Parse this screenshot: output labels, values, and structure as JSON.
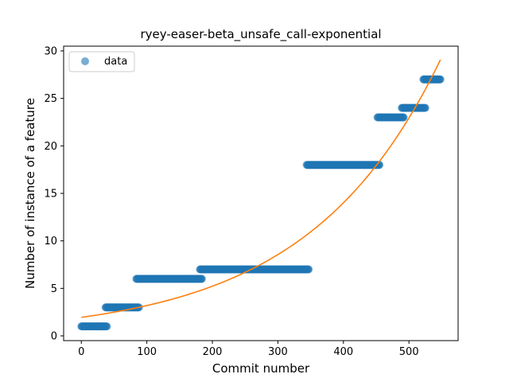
{
  "chart_data": {
    "type": "scatter",
    "title": "ryey-easer-beta_unsafe_call-exponential",
    "xlabel": "Commit number",
    "ylabel": "Number of instance of a feature",
    "xlim": [
      -27,
      575
    ],
    "ylim": [
      -0.5,
      30.5
    ],
    "xticks": [
      0,
      100,
      200,
      300,
      400,
      500
    ],
    "yticks": [
      0,
      5,
      10,
      15,
      20,
      25,
      30
    ],
    "grid": false,
    "legend": {
      "placement": "top-left",
      "entries": [
        "data"
      ]
    },
    "colors": {
      "data": "#1f77b4",
      "fit": "#ff7f0e"
    },
    "series": [
      {
        "name": "data",
        "kind": "scatter",
        "segments": [
          {
            "x_start": 0,
            "x_end": 39,
            "y": 1
          },
          {
            "x_start": 37,
            "x_end": 88,
            "y": 3
          },
          {
            "x_start": 84,
            "x_end": 184,
            "y": 6
          },
          {
            "x_start": 181,
            "x_end": 347,
            "y": 7
          },
          {
            "x_start": 344,
            "x_end": 455,
            "y": 18
          },
          {
            "x_start": 452,
            "x_end": 492,
            "y": 23
          },
          {
            "x_start": 489,
            "x_end": 525,
            "y": 24
          },
          {
            "x_start": 522,
            "x_end": 548,
            "y": 27
          }
        ]
      },
      {
        "kind": "line",
        "function": "exponential",
        "a": 1.95,
        "b": 0.00493,
        "x_range": [
          0,
          548
        ]
      }
    ]
  }
}
